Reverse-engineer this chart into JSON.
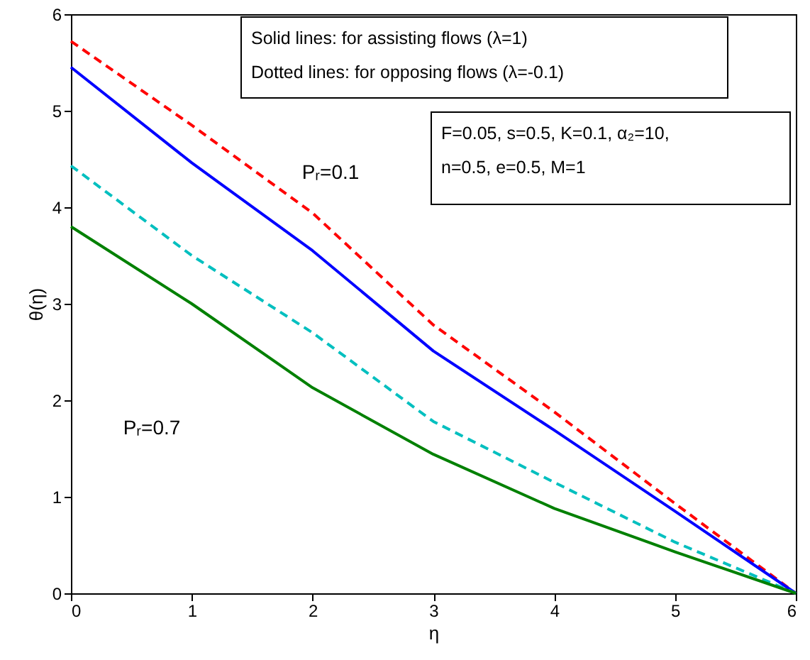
{
  "chart_data": {
    "type": "line",
    "xlabel": "η",
    "ylabel": "θ(η)",
    "x": [
      0,
      1,
      2,
      3,
      4,
      5,
      6
    ],
    "series": [
      {
        "color": "#ff0000",
        "line_style": "dashed",
        "values": [
          5.72,
          4.85,
          3.94,
          2.78,
          1.88,
          0.93,
          0
        ]
      },
      {
        "color": "#0000ff",
        "line_style": "solid",
        "values": [
          5.45,
          4.46,
          3.55,
          2.51,
          1.69,
          0.85,
          0
        ]
      },
      {
        "color": "#00bfbf",
        "line_style": "dashed",
        "values": [
          4.43,
          3.5,
          2.7,
          1.78,
          1.15,
          0.53,
          0
        ]
      },
      {
        "color": "#008000",
        "line_style": "solid",
        "values": [
          3.8,
          3.0,
          2.13,
          1.44,
          0.88,
          0.43,
          0
        ]
      }
    ],
    "xlim": [
      0,
      6
    ],
    "ylim": [
      0,
      6
    ],
    "xticks": [
      0,
      1,
      2,
      3,
      4,
      5,
      6
    ],
    "yticks": [
      0,
      1,
      2,
      3,
      4,
      5,
      6
    ],
    "grid": false,
    "marker": "none",
    "annotations": [
      "Pᵣ=0.1",
      "Pᵣ=0.7",
      "Solid lines: for assisting flows (λ=1)",
      "Dotted lines: for opposing flows (λ=-0.1)",
      "F=0.05, s=0.5, K=0.1, α₂=10,",
      "n=0.5, e=0.5, M=1"
    ]
  }
}
